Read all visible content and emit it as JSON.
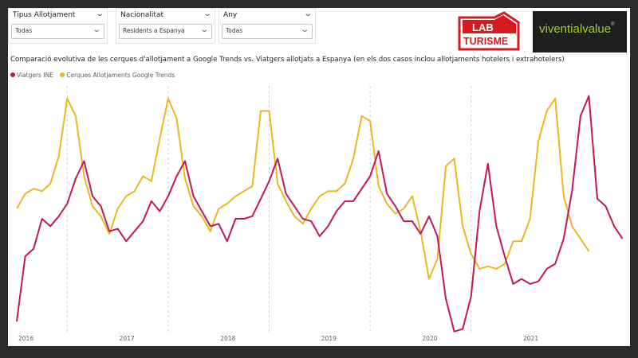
{
  "filters": [
    {
      "title": "Tipus Allotjament",
      "value": "Todas"
    },
    {
      "title": "Nacionalitat",
      "value": "Residents a Espanya"
    },
    {
      "title": "Any",
      "value": "Todas"
    }
  ],
  "logos": {
    "lab": {
      "line1": "LAB",
      "line2": "TURISME"
    },
    "viventialvalue": {
      "text": "viventialvalue",
      "mark": "®"
    }
  },
  "colors": {
    "ine": "#c2185b",
    "google": "#e9b820"
  },
  "chart_data": {
    "type": "line",
    "title": "Comparació evolutiva de les cerques d'allotjament a Google Trends vs. Viatgers allotjats a Espanya (en els dos casos inclou allotjaments hotelers i extrahotelers)",
    "xlabel": "",
    "ylabel": "",
    "legend_position": "top-left",
    "grid": false,
    "x_ticks": [
      "2016",
      "2017",
      "2018",
      "2019",
      "2020",
      "2021"
    ],
    "x_start": "2016-01",
    "ylim": [
      0,
      100
    ],
    "series": [
      {
        "name": "Viatgers INE",
        "color": "#c2185b",
        "values": [
          6,
          32,
          35,
          47,
          44,
          48,
          53,
          63,
          70,
          56,
          52,
          42,
          43,
          38,
          42,
          46,
          54,
          50,
          56,
          64,
          70,
          56,
          50,
          44,
          45,
          38,
          47,
          47,
          48,
          55,
          62,
          71,
          57,
          52,
          47,
          46,
          40,
          44,
          50,
          54,
          54,
          59,
          64,
          74,
          57,
          52,
          46,
          46,
          41,
          48,
          40,
          15,
          2,
          3,
          16,
          50,
          69,
          44,
          32,
          21,
          23,
          21,
          22,
          27,
          29,
          39,
          58,
          88,
          96,
          55,
          52,
          44,
          39
        ]
      },
      {
        "name": "Cerques Allotjaments Google Trends",
        "color": "#e9b820",
        "values": [
          51,
          57,
          59,
          58,
          61,
          72,
          95,
          88,
          64,
          52,
          48,
          41,
          51,
          56,
          58,
          64,
          62,
          79,
          95,
          87,
          63,
          52,
          48,
          42,
          51,
          53,
          56,
          58,
          60,
          90,
          90,
          61,
          54,
          48,
          45,
          51,
          56,
          58,
          58,
          61,
          71,
          88,
          86,
          60,
          53,
          49,
          51,
          56,
          42,
          23,
          31,
          68,
          71,
          44,
          33,
          27,
          28,
          27,
          29,
          38,
          38,
          47,
          78,
          90,
          95,
          56,
          44,
          39,
          34
        ]
      }
    ]
  }
}
